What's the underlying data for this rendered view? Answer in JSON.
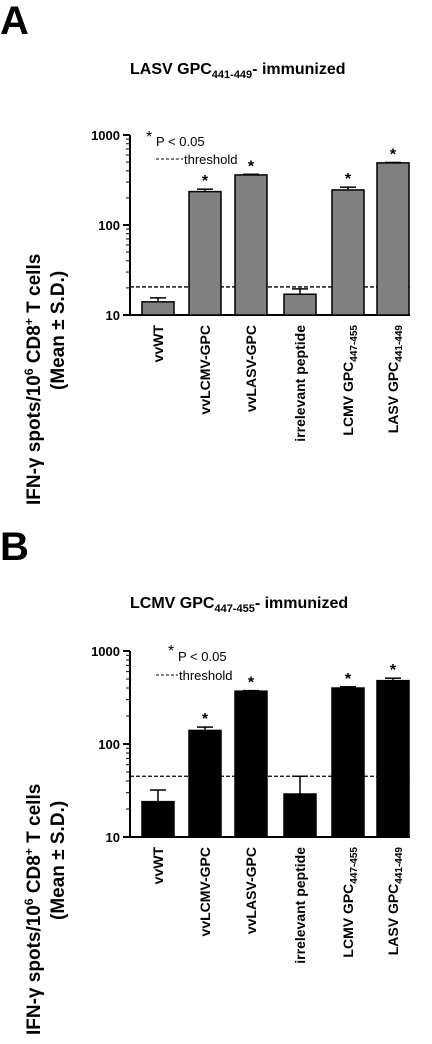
{
  "chart_data": [
    {
      "panel": "A",
      "type": "bar",
      "title": {
        "main": "LASV GPC",
        "sub": "441-449",
        "tail": "- immunized"
      },
      "ylabel": {
        "line1": {
          "main": "IFN-γ spots/10",
          "sup": "6",
          "mid": " CD8",
          "sup2": "+",
          "tail": " T cells"
        },
        "line2": "(Mean ± S.D.)"
      },
      "yscale": "log",
      "ylim": [
        10,
        1000
      ],
      "yticks": [
        "10",
        "100",
        "1000"
      ],
      "categories": [
        {
          "main": "vvWT",
          "sub": ""
        },
        {
          "main": "vvLCMV-GPC",
          "sub": ""
        },
        {
          "main": "vvLASV-GPC",
          "sub": ""
        },
        {
          "main": "irrelevant peptide",
          "sub": ""
        },
        {
          "main": "LCMV GPC",
          "sub": "447-455"
        },
        {
          "main": "LASV GPC",
          "sub": "441-449"
        }
      ],
      "values": [
        14,
        235,
        360,
        17,
        245,
        490
      ],
      "errors": [
        1.5,
        15,
        6,
        2.5,
        18,
        5
      ],
      "significant": [
        false,
        true,
        true,
        false,
        true,
        true
      ],
      "significance_mark": "*",
      "threshold": 20.5,
      "bar_color": "#808080",
      "legend": {
        "star_symbol": "*",
        "star_text": "P < 0.05",
        "threshold_text": "threshold"
      }
    },
    {
      "panel": "B",
      "type": "bar",
      "title": {
        "main": "LCMV GPC",
        "sub": "447-455",
        "tail": "- immunized"
      },
      "ylabel": {
        "line1": {
          "main": "IFN-γ spots/10",
          "sup": "6",
          "mid": " CD8",
          "sup2": "+",
          "tail": " T cells"
        },
        "line2": "(Mean ± S.D.)"
      },
      "yscale": "log",
      "ylim": [
        10,
        1000
      ],
      "yticks": [
        "10",
        "100",
        "1000"
      ],
      "categories": [
        {
          "main": "vvWT",
          "sub": ""
        },
        {
          "main": "vvLCMV-GPC",
          "sub": ""
        },
        {
          "main": "vvLASV-GPC",
          "sub": ""
        },
        {
          "main": "irrelevant peptide",
          "sub": ""
        },
        {
          "main": "LCMV GPC",
          "sub": "447-455"
        },
        {
          "main": "LASV GPC",
          "sub": "441-449"
        }
      ],
      "values": [
        24,
        140,
        370,
        29,
        400,
        480
      ],
      "errors": [
        8,
        12,
        5,
        16,
        12,
        30
      ],
      "significant": [
        false,
        true,
        true,
        false,
        true,
        true
      ],
      "significance_mark": "*",
      "threshold": 45,
      "bar_color": "#000000",
      "legend": {
        "star_symbol": "*",
        "star_text": "P < 0.05",
        "threshold_text": "threshold"
      }
    }
  ]
}
